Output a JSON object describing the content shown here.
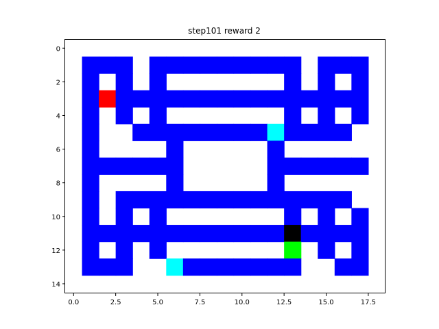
{
  "title": "step101 reward 2",
  "colors": {
    "wall": "#0000ff",
    "floor": "#ffffff",
    "red": "#ff0000",
    "cyan": "#00ffff",
    "black": "#000000",
    "green": "#00ff00"
  },
  "chart_data": {
    "type": "heatmap",
    "title": "step101 reward 2",
    "xlim": [
      -0.5,
      18.5
    ],
    "ylim": [
      14.5,
      -0.5
    ],
    "xticks": [
      0,
      2.5,
      5,
      7.5,
      10,
      12.5,
      15,
      17.5
    ],
    "xtick_labels": [
      "0.0",
      "2.5",
      "5.0",
      "7.5",
      "10.0",
      "12.5",
      "15.0",
      "17.5"
    ],
    "yticks": [
      0,
      2,
      4,
      6,
      8,
      10,
      12,
      14
    ],
    "ytick_labels": [
      "0",
      "2",
      "4",
      "6",
      "8",
      "10",
      "12",
      "14"
    ],
    "legend": "0=floor 1=wall 2=red 3=cyan 4=black 5=green",
    "grid": [
      "0000000000000000000",
      "0111011111111101110",
      "0101010000000101010",
      "0121111111111111110",
      "0101010000000101010",
      "0100111111113111100",
      "0100001000001000000",
      "0111111000001111110",
      "0100001000001000000",
      "0101111111111111100",
      "0101010000000101010",
      "0111111111111411110",
      "0101010000000501010",
      "0111003111111100110",
      "0000000000000000000"
    ]
  }
}
